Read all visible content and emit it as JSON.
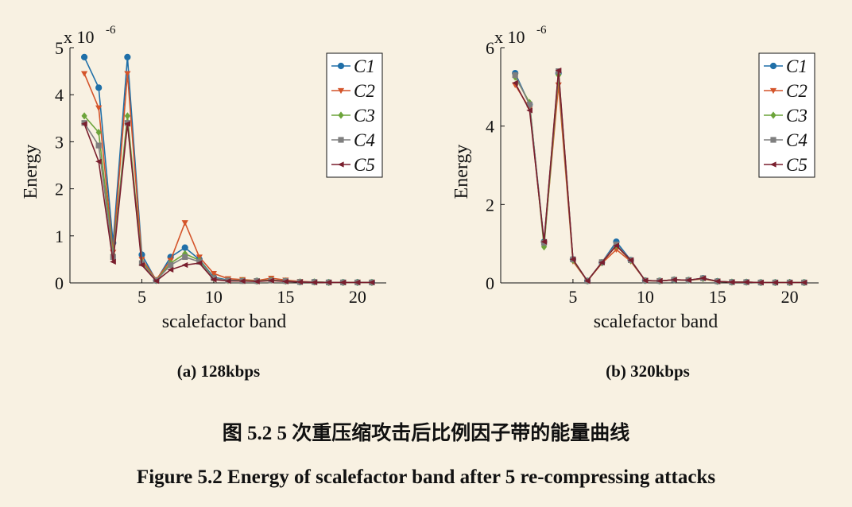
{
  "figure": {
    "subcaption_a": "(a) 128kbps",
    "subcaption_b": "(b) 320kbps",
    "caption_cn": "图 5.2 5 次重压缩攻击后比例因子带的能量曲线",
    "caption_en": "Figure 5.2 Energy of scalefactor band after 5 re-compressing attacks"
  },
  "series_styles": [
    {
      "name": "C1",
      "color": "#1f6fa8",
      "marker": "circle"
    },
    {
      "name": "C2",
      "color": "#d4542a",
      "marker": "triangle-down"
    },
    {
      "name": "C3",
      "color": "#6ca43a",
      "marker": "diamond"
    },
    {
      "name": "C4",
      "color": "#7f7f7f",
      "marker": "square"
    },
    {
      "name": "C5",
      "color": "#7a1f2e",
      "marker": "triangle-left"
    }
  ],
  "chart_data": [
    {
      "type": "line",
      "xlabel": "scalefactor band",
      "ylabel": "Energy",
      "y_exponent": "x 10",
      "y_exponent_power": "-6",
      "xlim": [
        0,
        22
      ],
      "ylim": [
        0,
        5
      ],
      "xticks": [
        5,
        10,
        15,
        20
      ],
      "yticks": [
        0,
        1,
        2,
        3,
        4,
        5
      ],
      "legend_position": "top-right",
      "x": [
        1,
        2,
        3,
        4,
        5,
        6,
        7,
        8,
        9,
        10,
        11,
        12,
        13,
        14,
        15,
        16,
        17,
        18,
        19,
        20,
        21
      ],
      "series": [
        {
          "name": "C1",
          "values": [
            4.8,
            4.15,
            0.85,
            4.8,
            0.6,
            0.05,
            0.55,
            0.75,
            0.5,
            0.12,
            0.06,
            0.05,
            0.04,
            0.06,
            0.04,
            0.02,
            0.02,
            0.01,
            0.01,
            0.01,
            0.01
          ]
        },
        {
          "name": "C2",
          "values": [
            4.45,
            3.72,
            0.65,
            4.45,
            0.5,
            0.07,
            0.48,
            1.28,
            0.55,
            0.2,
            0.09,
            0.07,
            0.05,
            0.1,
            0.06,
            0.03,
            0.02,
            0.01,
            0.01,
            0.01,
            0.01
          ]
        },
        {
          "name": "C3",
          "values": [
            3.55,
            3.2,
            0.6,
            3.55,
            0.45,
            0.05,
            0.42,
            0.62,
            0.48,
            0.1,
            0.05,
            0.05,
            0.04,
            0.06,
            0.04,
            0.02,
            0.02,
            0.01,
            0.01,
            0.01,
            0.01
          ]
        },
        {
          "name": "C4",
          "values": [
            3.4,
            2.92,
            0.55,
            3.4,
            0.42,
            0.05,
            0.38,
            0.55,
            0.45,
            0.1,
            0.05,
            0.04,
            0.04,
            0.05,
            0.04,
            0.02,
            0.02,
            0.01,
            0.01,
            0.01,
            0.01
          ]
        },
        {
          "name": "C5",
          "values": [
            3.38,
            2.58,
            0.45,
            3.38,
            0.38,
            0.04,
            0.28,
            0.38,
            0.42,
            0.07,
            0.04,
            0.04,
            0.03,
            0.05,
            0.03,
            0.02,
            0.01,
            0.01,
            0.01,
            0.01,
            0.01
          ]
        }
      ]
    },
    {
      "type": "line",
      "xlabel": "scalefactor band",
      "ylabel": "Energy",
      "y_exponent": "x 10",
      "y_exponent_power": "-6",
      "xlim": [
        0,
        22
      ],
      "ylim": [
        0,
        6
      ],
      "xticks": [
        5,
        10,
        15,
        20
      ],
      "yticks": [
        0,
        2,
        4,
        6
      ],
      "legend_position": "top-right",
      "x": [
        1,
        2,
        3,
        4,
        5,
        6,
        7,
        8,
        9,
        10,
        11,
        12,
        13,
        14,
        15,
        16,
        17,
        18,
        19,
        20,
        21
      ],
      "series": [
        {
          "name": "C1",
          "values": [
            5.35,
            4.55,
            1.05,
            5.35,
            0.6,
            0.05,
            0.52,
            1.05,
            0.58,
            0.06,
            0.05,
            0.08,
            0.07,
            0.12,
            0.04,
            0.02,
            0.02,
            0.01,
            0.01,
            0.01,
            0.01
          ]
        },
        {
          "name": "C2",
          "values": [
            5.05,
            4.45,
            1.0,
            5.05,
            0.55,
            0.05,
            0.5,
            0.85,
            0.55,
            0.06,
            0.05,
            0.08,
            0.07,
            0.1,
            0.04,
            0.02,
            0.02,
            0.01,
            0.01,
            0.01,
            0.01
          ]
        },
        {
          "name": "C3",
          "values": [
            5.25,
            4.6,
            0.92,
            5.3,
            0.58,
            0.05,
            0.52,
            0.95,
            0.57,
            0.06,
            0.05,
            0.08,
            0.07,
            0.11,
            0.04,
            0.02,
            0.02,
            0.01,
            0.01,
            0.01,
            0.01
          ]
        },
        {
          "name": "C4",
          "values": [
            5.3,
            4.55,
            1.02,
            5.4,
            0.6,
            0.05,
            0.53,
            0.98,
            0.58,
            0.06,
            0.05,
            0.08,
            0.07,
            0.12,
            0.04,
            0.02,
            0.02,
            0.01,
            0.01,
            0.01,
            0.01
          ]
        },
        {
          "name": "C5",
          "values": [
            5.1,
            4.4,
            1.05,
            5.42,
            0.6,
            0.05,
            0.52,
            0.95,
            0.58,
            0.06,
            0.05,
            0.08,
            0.07,
            0.12,
            0.04,
            0.02,
            0.02,
            0.01,
            0.01,
            0.01,
            0.01
          ]
        }
      ]
    }
  ]
}
